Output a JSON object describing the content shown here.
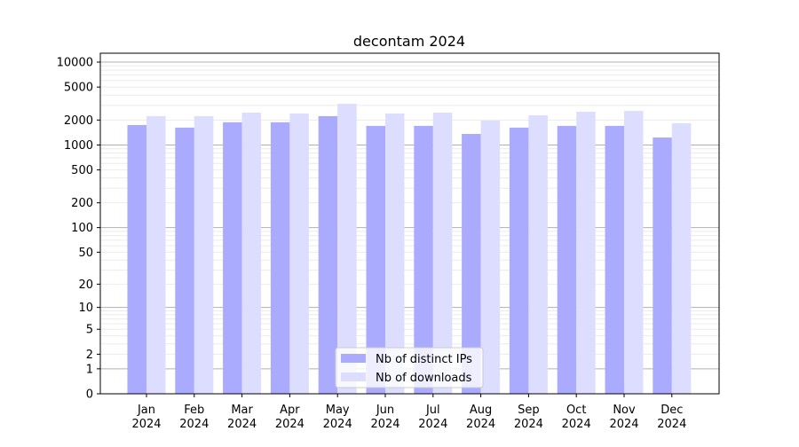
{
  "chart_data": {
    "type": "bar",
    "title": "decontam 2024",
    "xlabel": "",
    "ylabel": "",
    "yscale": "log10(y+1)",
    "ylim": [
      0,
      12800
    ],
    "grid": true,
    "legend_position": "bottom-center",
    "categories": [
      "Jan\n2024",
      "Feb\n2024",
      "Mar\n2024",
      "Apr\n2024",
      "May\n2024",
      "Jun\n2024",
      "Jul\n2024",
      "Aug\n2024",
      "Sep\n2024",
      "Oct\n2024",
      "Nov\n2024",
      "Dec\n2024"
    ],
    "yticks": [
      0,
      1,
      2,
      5,
      10,
      20,
      50,
      100,
      200,
      500,
      1000,
      2000,
      5000,
      10000
    ],
    "series": [
      {
        "name": "Nb of distinct IPs",
        "color": "#aaaaff",
        "values": [
          1740,
          1620,
          1880,
          1880,
          2230,
          1700,
          1700,
          1360,
          1620,
          1700,
          1700,
          1230
        ]
      },
      {
        "name": "Nb of downloads",
        "color": "#ddddff",
        "values": [
          2230,
          2230,
          2460,
          2400,
          3140,
          2400,
          2460,
          1970,
          2280,
          2520,
          2580,
          1830
        ]
      }
    ]
  }
}
